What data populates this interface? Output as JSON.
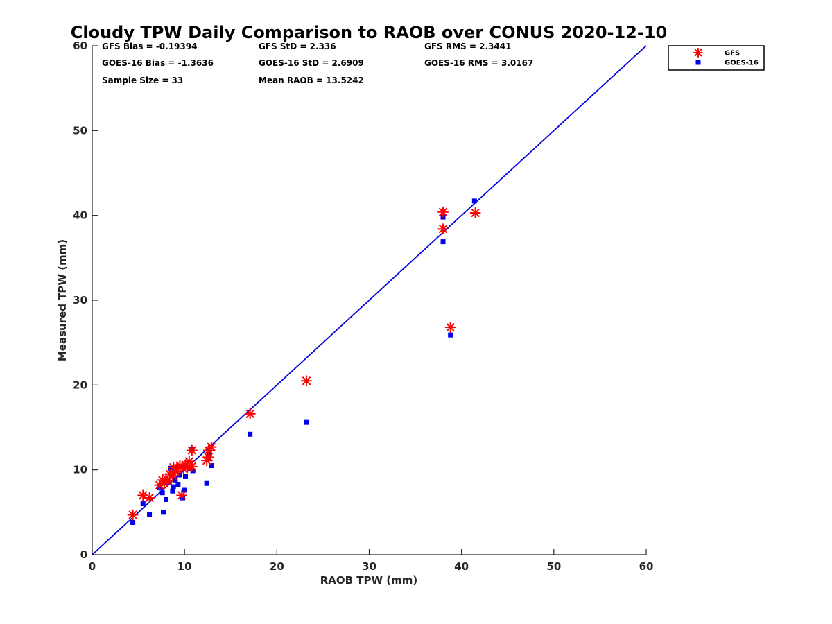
{
  "chart_data": {
    "type": "scatter",
    "title": "Cloudy TPW Daily Comparison to RAOB over CONUS 2020-12-10",
    "xlabel": "RAOB TPW (mm)",
    "ylabel": "Measured TPW (mm)",
    "xlim": [
      0,
      60
    ],
    "ylim": [
      0,
      60
    ],
    "xticks": [
      "0",
      "10",
      "20",
      "30",
      "40",
      "50",
      "60"
    ],
    "yticks": [
      "0",
      "10",
      "20",
      "30",
      "40",
      "50",
      "60"
    ],
    "grid": false,
    "legend_position": "outside-top-right",
    "reference_line": {
      "from": [
        0,
        0
      ],
      "to": [
        60,
        60
      ],
      "color": "#0000dd"
    },
    "stats": [
      [
        "GFS Bias = -0.19394",
        "GFS StD = 2.336",
        "GFS RMS = 2.3441"
      ],
      [
        "GOES-16 Bias = -1.3636",
        "GOES-16 StD = 2.6909",
        "GOES-16 RMS = 3.0167"
      ],
      [
        "Sample Size = 33",
        "Mean RAOB = 13.5242",
        ""
      ]
    ],
    "series": [
      {
        "name": "GFS",
        "marker": "asterisk",
        "color": "#ff0000",
        "points": [
          [
            4.4,
            4.7
          ],
          [
            5.5,
            7.0
          ],
          [
            6.2,
            6.7
          ],
          [
            7.3,
            8.2
          ],
          [
            7.6,
            8.8
          ],
          [
            7.8,
            8.4
          ],
          [
            8.0,
            9.0
          ],
          [
            8.2,
            8.7
          ],
          [
            8.4,
            9.5
          ],
          [
            8.7,
            9.3
          ],
          [
            8.8,
            10.3
          ],
          [
            9.0,
            9.8
          ],
          [
            9.3,
            10.2
          ],
          [
            9.5,
            10.5
          ],
          [
            9.7,
            7.0
          ],
          [
            9.9,
            10.1
          ],
          [
            10.1,
            10.6
          ],
          [
            10.3,
            10.3
          ],
          [
            10.5,
            11.0
          ],
          [
            10.8,
            10.4
          ],
          [
            10.8,
            12.3
          ],
          [
            12.4,
            11.1
          ],
          [
            12.6,
            11.5
          ],
          [
            12.6,
            12.3
          ],
          [
            12.9,
            12.7
          ],
          [
            17.1,
            16.6
          ],
          [
            23.2,
            20.5
          ],
          [
            38.0,
            40.4
          ],
          [
            38.0,
            38.4
          ],
          [
            38.8,
            26.8
          ],
          [
            41.5,
            40.3
          ]
        ]
      },
      {
        "name": "GOES-16",
        "marker": "square",
        "color": "#0000ee",
        "points": [
          [
            4.4,
            3.8
          ],
          [
            5.5,
            6.0
          ],
          [
            6.2,
            4.7
          ],
          [
            7.3,
            7.9
          ],
          [
            7.6,
            7.3
          ],
          [
            7.7,
            5.0
          ],
          [
            8.0,
            6.5
          ],
          [
            8.2,
            8.5
          ],
          [
            8.5,
            10.2
          ],
          [
            8.7,
            7.5
          ],
          [
            8.8,
            8.0
          ],
          [
            9.0,
            8.8
          ],
          [
            9.3,
            8.3
          ],
          [
            9.5,
            9.4
          ],
          [
            9.7,
            10.4
          ],
          [
            9.8,
            6.7
          ],
          [
            10.0,
            7.6
          ],
          [
            10.1,
            9.2
          ],
          [
            10.5,
            10.1
          ],
          [
            10.8,
            12.4
          ],
          [
            10.9,
            9.9
          ],
          [
            12.4,
            8.4
          ],
          [
            12.6,
            11.4
          ],
          [
            12.7,
            11.9
          ],
          [
            12.9,
            10.5
          ],
          [
            17.1,
            14.2
          ],
          [
            23.2,
            15.6
          ],
          [
            38.0,
            39.8
          ],
          [
            38.0,
            36.9
          ],
          [
            38.8,
            25.9
          ],
          [
            41.4,
            41.7
          ]
        ]
      }
    ]
  }
}
